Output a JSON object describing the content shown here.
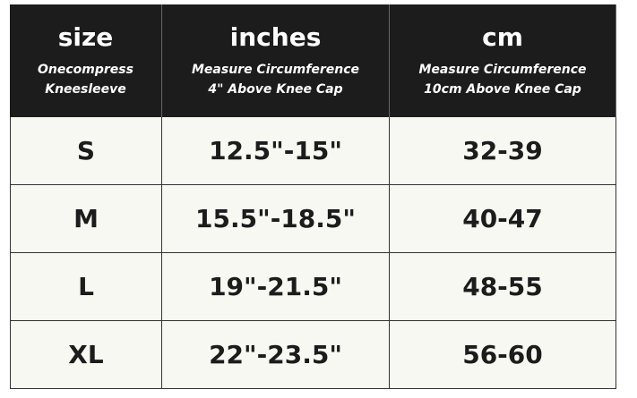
{
  "table": {
    "columns": [
      {
        "title": "size",
        "subtitle": [
          "Onecompress",
          "Kneesleeve"
        ]
      },
      {
        "title": "inches",
        "subtitle": [
          "Measure Circumference",
          "4\" Above Knee Cap"
        ]
      },
      {
        "title": "cm",
        "subtitle": [
          "Measure Circumference",
          "10cm Above Knee Cap"
        ]
      }
    ],
    "rows": [
      [
        "S",
        "12.5\"-15\"",
        "32-39"
      ],
      [
        "M",
        "15.5\"-18.5\"",
        "40-47"
      ],
      [
        "L",
        "19\"-21.5\"",
        "48-55"
      ],
      [
        "XL",
        "22\"-23.5\"",
        "56-60"
      ]
    ]
  }
}
